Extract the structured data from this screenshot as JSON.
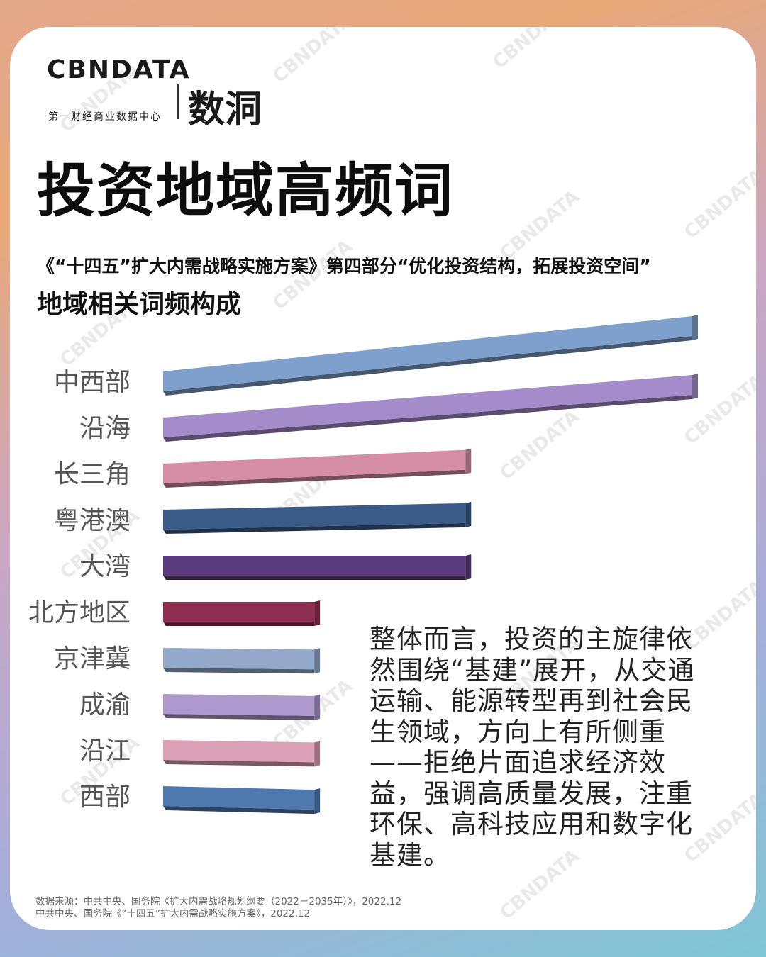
{
  "brand": {
    "logo_text": "CBNDATA",
    "logo_subtitle": "第一财经商业数据中心",
    "logo_mark": "数洞",
    "watermark": "CBNDATA"
  },
  "header": {
    "title": "投资地域高频词",
    "subtitle_line1": "《“十四五”扩大内需战略实施方案》第四部分“优化投资结构，拓展投资空间”",
    "subtitle_line2": "地域相关词频构成"
  },
  "chart_data": {
    "type": "bar",
    "orientation": "horizontal",
    "title": "",
    "xlabel": "",
    "ylabel": "",
    "categories": [
      "中西部",
      "沿海",
      "长三角",
      "粤港澳",
      "大湾",
      "北方地区",
      "京津冀",
      "成渝",
      "沿江",
      "西部"
    ],
    "values": [
      7,
      7,
      4,
      4,
      4,
      2,
      2,
      2,
      2,
      2
    ],
    "colors": [
      "#7f9fcc",
      "#a48bc9",
      "#d58ea5",
      "#3a5b88",
      "#5a3c7e",
      "#8e2f51",
      "#93a9cc",
      "#ad99cc",
      "#dca0b6",
      "#4f78af"
    ],
    "axis_visible": false,
    "grid": false,
    "legend": "none"
  },
  "summary": {
    "text": "整体而言，投资的主旋律依然围绕“基建”展开，从交通运输、能源转型再到社会民生领域，方向上有所侧重——拒绝片面追求经济效益，强调高质量发展，注重环保、高科技应用和数字化基建。"
  },
  "source": {
    "line1": "数据来源：中共中央、国务院《扩大内需战略规划纲要（2022－2035年）》，2022.12",
    "line2": "中共中央、国务院《“十四五”扩大内需战略实施方案》，2022.12"
  }
}
